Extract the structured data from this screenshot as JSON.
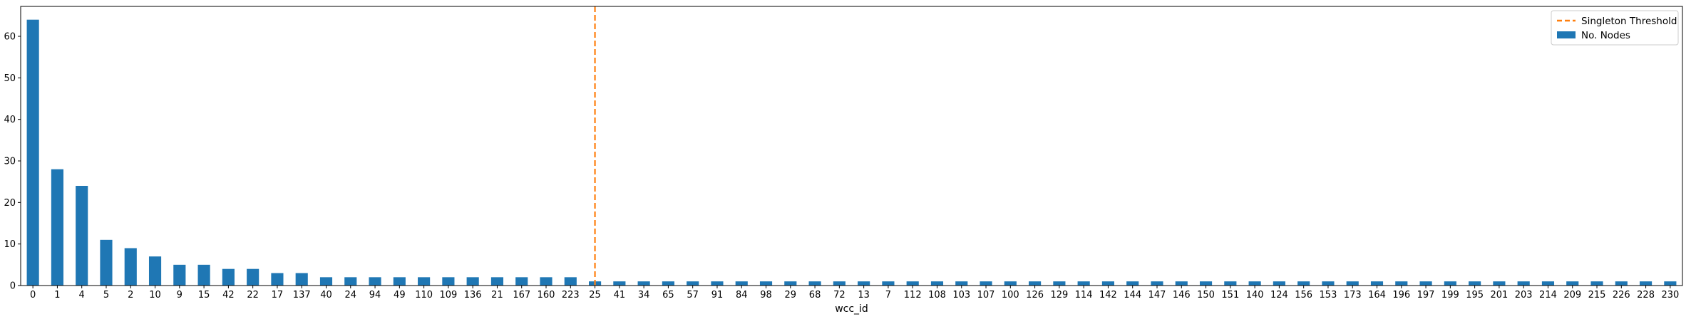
{
  "chart_data": {
    "type": "bar",
    "xlabel": "wcc_id",
    "ylabel": "",
    "ylim": [
      0,
      67.2
    ],
    "yticks": [
      0,
      10,
      20,
      30,
      40,
      50,
      60
    ],
    "categories": [
      "0",
      "1",
      "4",
      "5",
      "2",
      "10",
      "9",
      "15",
      "42",
      "22",
      "17",
      "137",
      "40",
      "24",
      "94",
      "49",
      "110",
      "109",
      "136",
      "21",
      "167",
      "160",
      "223",
      "25",
      "41",
      "34",
      "65",
      "57",
      "91",
      "84",
      "98",
      "29",
      "68",
      "72",
      "13",
      "7",
      "112",
      "108",
      "103",
      "107",
      "100",
      "126",
      "129",
      "114",
      "142",
      "144",
      "147",
      "146",
      "150",
      "151",
      "140",
      "124",
      "156",
      "153",
      "173",
      "164",
      "196",
      "197",
      "199",
      "195",
      "201",
      "203",
      "214",
      "209",
      "215",
      "226",
      "228",
      "230"
    ],
    "series": [
      {
        "name": "No. Nodes",
        "color": "#1f77b4",
        "values": [
          64,
          28,
          24,
          11,
          9,
          7,
          5,
          5,
          4,
          4,
          3,
          3,
          2,
          2,
          2,
          2,
          2,
          2,
          2,
          2,
          2,
          2,
          2,
          1,
          1,
          1,
          1,
          1,
          1,
          1,
          1,
          1,
          1,
          1,
          1,
          1,
          1,
          1,
          1,
          1,
          1,
          1,
          1,
          1,
          1,
          1,
          1,
          1,
          1,
          1,
          1,
          1,
          1,
          1,
          1,
          1,
          1,
          1,
          1,
          1,
          1,
          1,
          1,
          1,
          1,
          1,
          1,
          1
        ]
      }
    ],
    "threshold": {
      "name": "Singleton Threshold",
      "category": "25",
      "color": "#ff7f0e",
      "style": "dashed"
    },
    "grid": false,
    "legend_position": "top-right",
    "legend": [
      {
        "label": "Singleton Threshold",
        "kind": "dashed-line",
        "color": "#ff7f0e"
      },
      {
        "label": "No. Nodes",
        "kind": "patch",
        "color": "#1f77b4"
      }
    ]
  }
}
